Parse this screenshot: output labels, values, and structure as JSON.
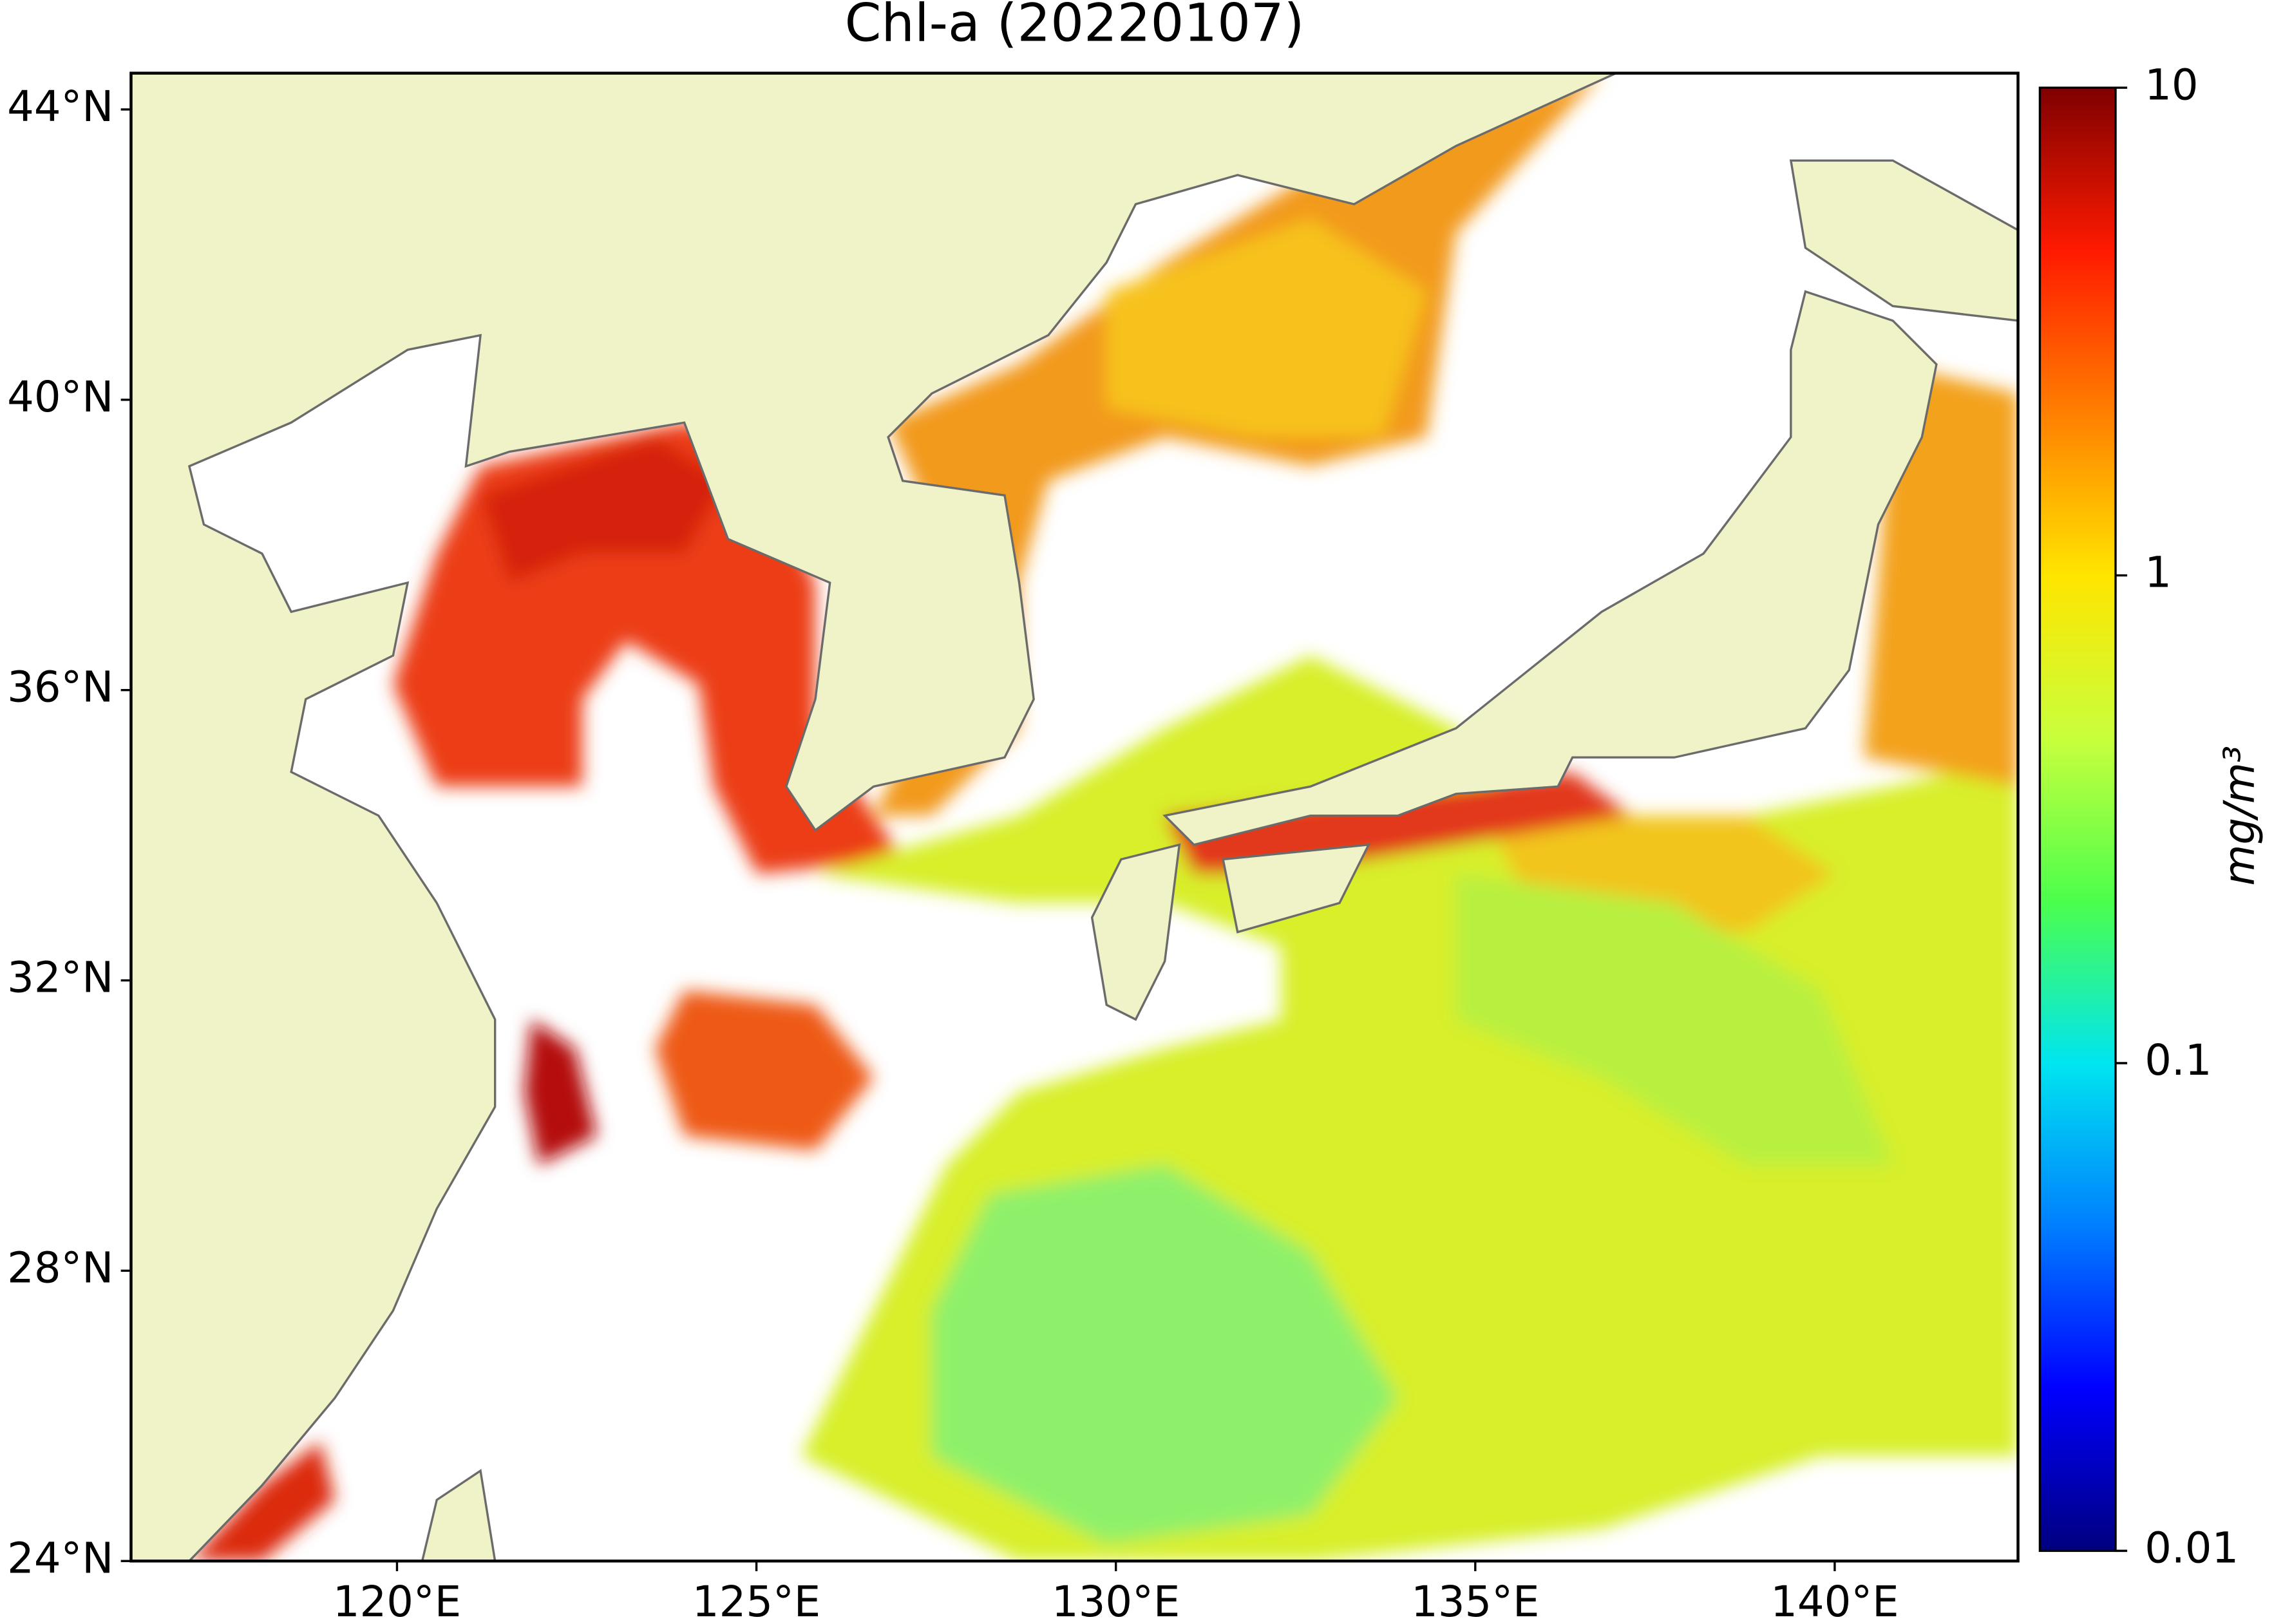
{
  "chart_data": {
    "type": "map",
    "title": "Chl-a (20220107)",
    "xlim": [
      116.3,
      142.55
    ],
    "ylim": [
      24,
      44.5
    ],
    "xticks": [
      {
        "value": 120,
        "label": "120°E"
      },
      {
        "value": 125,
        "label": "125°E"
      },
      {
        "value": 130,
        "label": "130°E"
      },
      {
        "value": 135,
        "label": "135°E"
      },
      {
        "value": 140,
        "label": "140°E"
      }
    ],
    "yticks": [
      {
        "value": 24,
        "label": "24°N"
      },
      {
        "value": 28,
        "label": "28°N"
      },
      {
        "value": 32,
        "label": "32°N"
      },
      {
        "value": 36,
        "label": "36°N"
      },
      {
        "value": 40,
        "label": "40°N"
      },
      {
        "value": 44,
        "label": "44°N"
      }
    ],
    "colorbar": {
      "label": "mg/m³",
      "log_scale": true,
      "lim": [
        0.01,
        10
      ],
      "ticks": [
        0.01,
        0.1,
        1,
        10
      ],
      "colormap": [
        "#00007f",
        "#0000ff",
        "#007fff",
        "#00e5f0",
        "#4cff4c",
        "#c8ff3c",
        "#ffe500",
        "#ff7f00",
        "#ff1a00",
        "#7f0000"
      ]
    },
    "land_color": "#f0f2c8",
    "coast_color": "#6b6b6b"
  }
}
